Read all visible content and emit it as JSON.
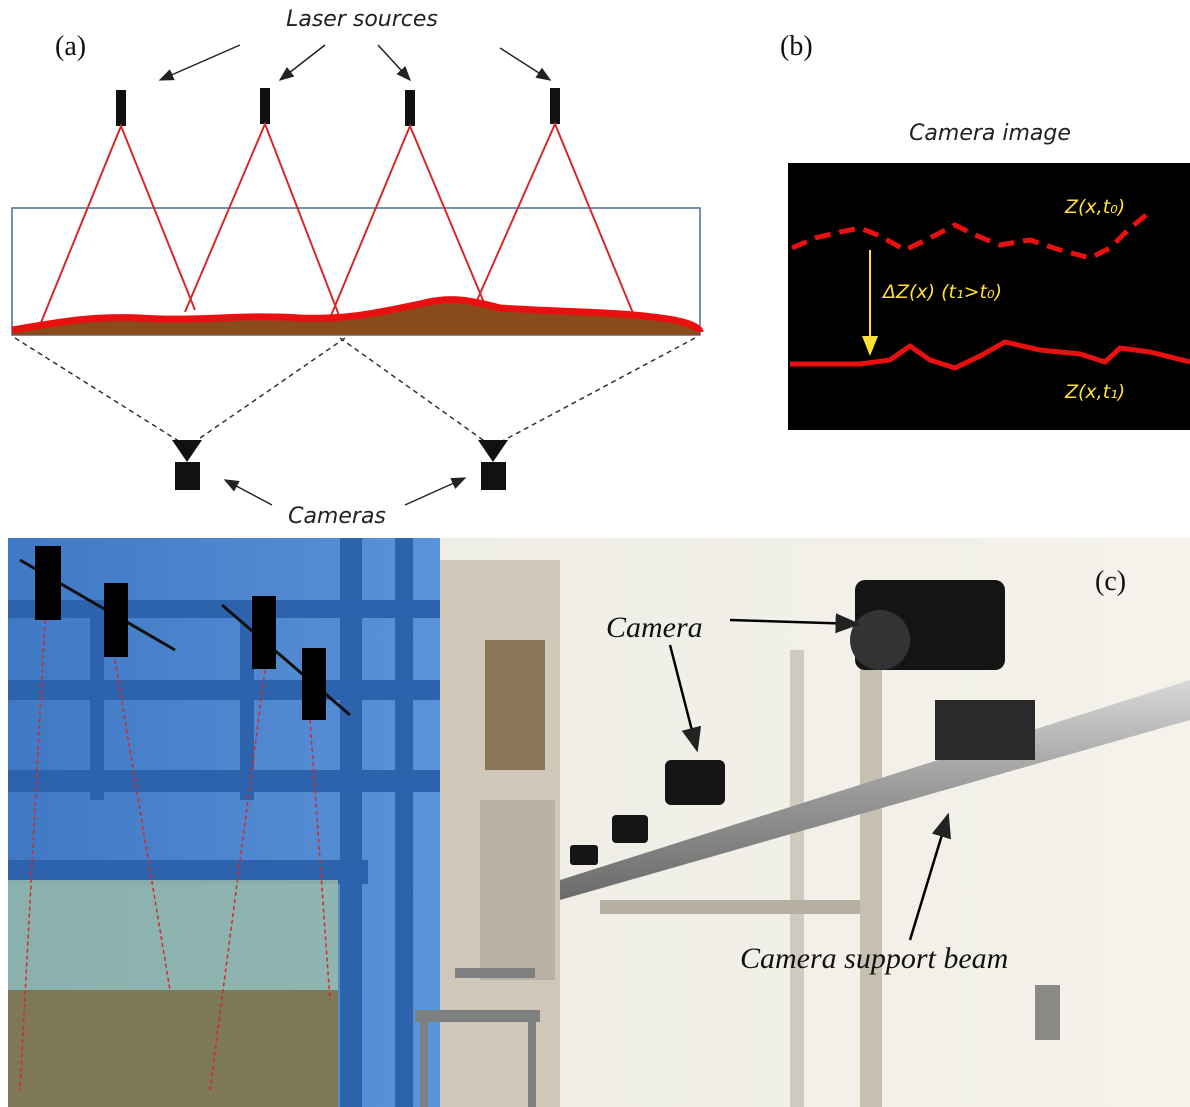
{
  "panel_a": {
    "label": "(a)",
    "laser_label": "Laser sources",
    "camera_label": "Cameras"
  },
  "panel_b": {
    "label": "(b)",
    "title": "Camera image",
    "curve_t0": "Z(x,t₀)",
    "delta_label": "ΔZ(x) (t₁>t₀)",
    "curve_t1": "Z(x,t₁)"
  },
  "panel_c": {
    "label": "(c)",
    "camera_label": "Camera",
    "beam_label": "Camera support beam"
  }
}
